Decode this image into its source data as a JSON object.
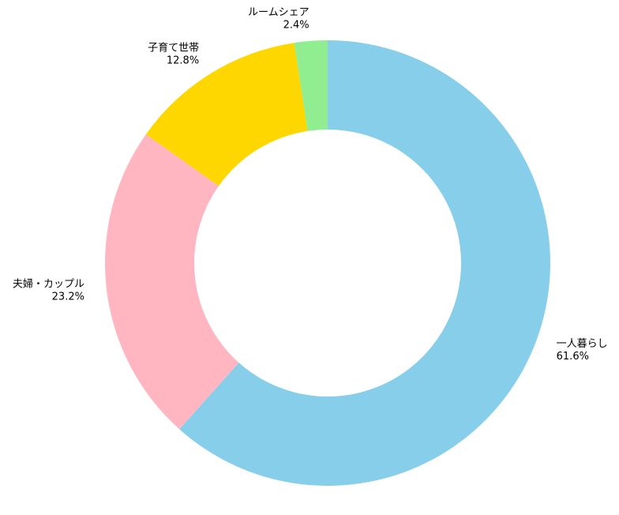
{
  "chart_data": {
    "type": "donut",
    "categories": [
      "一人暮らし",
      "夫婦・カップル",
      "子育て世帯",
      "ルームシェア"
    ],
    "values": [
      61.6,
      23.2,
      12.8,
      2.4
    ],
    "value_labels": [
      "61.6%",
      "23.2%",
      "12.8%",
      "2.4%"
    ],
    "colors": [
      "#87ceeb",
      "#ffb6c1",
      "#ffd700",
      "#90ee90"
    ]
  }
}
